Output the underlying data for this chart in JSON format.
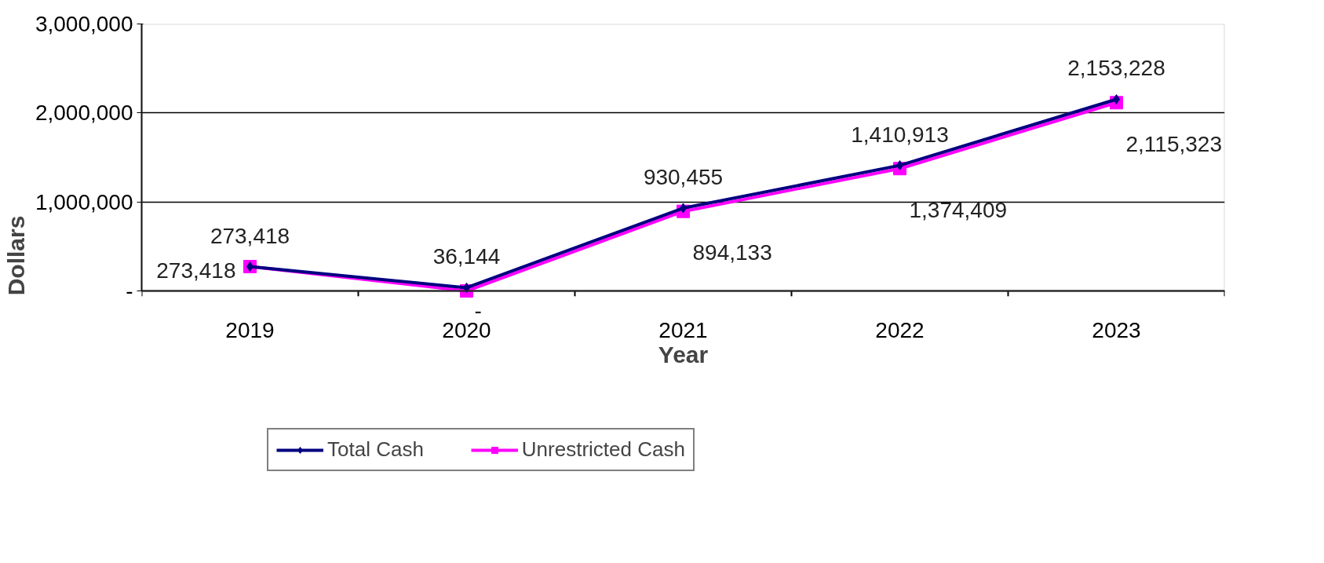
{
  "chart_data": {
    "type": "line",
    "xlabel": "Year",
    "ylabel": "Dollars",
    "categories": [
      "2019",
      "2020",
      "2021",
      "2022",
      "2023"
    ],
    "ylim": [
      0,
      3000000
    ],
    "yticks": [
      {
        "value": 0,
        "label": "-"
      },
      {
        "value": 1000000,
        "label": "1,000,000"
      },
      {
        "value": 2000000,
        "label": "2,000,000"
      },
      {
        "value": 3000000,
        "label": "3,000,000"
      }
    ],
    "grid": "y",
    "legend": "bottom",
    "series": [
      {
        "name": "Total Cash",
        "color": "#000080",
        "marker": "diamond",
        "values": [
          273418,
          36144,
          930455,
          1410913,
          2153228
        ],
        "value_labels": [
          "273,418",
          "36,144",
          "930,455",
          "1,410,913",
          "2,153,228"
        ]
      },
      {
        "name": "Unrestricted Cash",
        "color": "#ff00ff",
        "marker": "square",
        "values": [
          273418,
          0,
          894133,
          1374409,
          2115323
        ],
        "value_labels": [
          "273,418",
          "-",
          "894,133",
          "1,374,409",
          "2,115,323"
        ]
      }
    ]
  }
}
